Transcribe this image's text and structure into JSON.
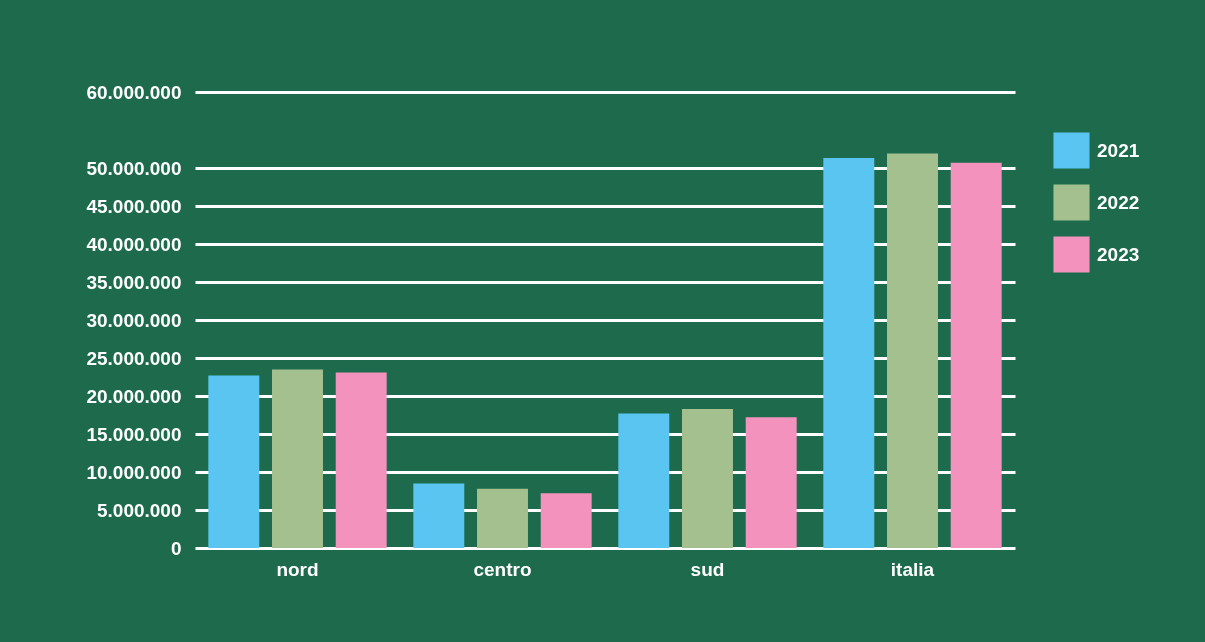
{
  "chart_data": {
    "type": "bar",
    "categories": [
      "nord",
      "centro",
      "sud",
      "italia"
    ],
    "series": [
      {
        "name": "2021",
        "color": "#5bc5f2",
        "values": [
          22700000,
          8500000,
          17700000,
          51300000
        ]
      },
      {
        "name": "2022",
        "color": "#a5c08f",
        "values": [
          23500000,
          7800000,
          18300000,
          51900000
        ]
      },
      {
        "name": "2023",
        "color": "#f393bd",
        "values": [
          23100000,
          7200000,
          17200000,
          50700000
        ]
      }
    ],
    "ylim": [
      0,
      60000000
    ],
    "yticks": [
      0,
      {
        "value": 5000000,
        "label": "5.000.000"
      },
      {
        "value": 10000000,
        "label": "10.000.000"
      },
      {
        "value": 15000000,
        "label": "15.000.000"
      },
      {
        "value": 20000000,
        "label": "20.000.000"
      },
      {
        "value": 25000000,
        "label": "25.000.000"
      },
      {
        "value": 30000000,
        "label": "30.000.000"
      },
      {
        "value": 35000000,
        "label": "35.000.000"
      },
      {
        "value": 40000000,
        "label": "40.000.000"
      },
      {
        "value": 45000000,
        "label": "45.000.000"
      },
      {
        "value": 50000000,
        "label": "50.000.000"
      },
      {
        "value": 60000000,
        "label": "60.000.000"
      }
    ],
    "grid": "y",
    "legend": "top right"
  }
}
